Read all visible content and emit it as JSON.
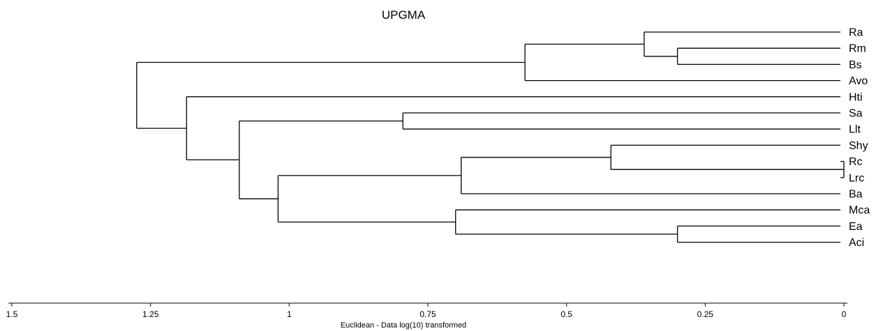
{
  "title": "UPGMA",
  "axis_caption": "Euclidean - Data log(10) transformed",
  "colors": {
    "line": "#000000",
    "background": "#ffffff"
  },
  "leaves": [
    "Ra",
    "Rm",
    "Bs",
    "Avo",
    "Hti",
    "Sa",
    "Llt",
    "Shy",
    "Rc",
    "Lrc",
    "Ba",
    "Mca",
    "Ea",
    "Aci"
  ],
  "x_axis": {
    "direction": "decreasing",
    "range": [
      1.5,
      0
    ],
    "ticks": [
      {
        "value": 1.5,
        "label": "1.5"
      },
      {
        "value": 1.25,
        "label": "1.25"
      },
      {
        "value": 1.0,
        "label": "1"
      },
      {
        "value": 0.75,
        "label": "0.75"
      },
      {
        "value": 0.5,
        "label": "0.5"
      },
      {
        "value": 0.25,
        "label": "0.25"
      },
      {
        "value": 0.0,
        "label": "0"
      }
    ]
  },
  "chart_data": {
    "type": "dendrogram",
    "method": "UPGMA",
    "nodes": [
      {
        "id": "rm_bs",
        "children": [
          "Rm",
          "Bs"
        ],
        "height": 0.3
      },
      {
        "id": "ra_rm_bs",
        "children": [
          "Ra",
          "rm_bs"
        ],
        "height": 0.36
      },
      {
        "id": "g1",
        "children": [
          "ra_rm_bs",
          "Avo"
        ],
        "height": 0.575
      },
      {
        "id": "sa_llt",
        "children": [
          "Sa",
          "Llt"
        ],
        "height": 0.795
      },
      {
        "id": "rc_lrc",
        "children": [
          "Rc",
          "Lrc"
        ],
        "height": 0.0
      },
      {
        "id": "shy_rc_lrc",
        "children": [
          "Shy",
          "rc_lrc"
        ],
        "height": 0.42
      },
      {
        "id": "g_ba",
        "children": [
          "shy_rc_lrc",
          "Ba"
        ],
        "height": 0.69
      },
      {
        "id": "ea_aci",
        "children": [
          "Ea",
          "Aci"
        ],
        "height": 0.3
      },
      {
        "id": "g_mca",
        "children": [
          "Mca",
          "ea_aci"
        ],
        "height": 0.7
      },
      {
        "id": "g_lower",
        "children": [
          "g_ba",
          "g_mca"
        ],
        "height": 1.02
      },
      {
        "id": "g_mid",
        "children": [
          "sa_llt",
          "g_lower"
        ],
        "height": 1.09
      },
      {
        "id": "g_hti",
        "children": [
          "Hti",
          "g_mid"
        ],
        "height": 1.185
      },
      {
        "id": "root",
        "children": [
          "g1",
          "g_hti"
        ],
        "height": 1.275
      }
    ]
  }
}
